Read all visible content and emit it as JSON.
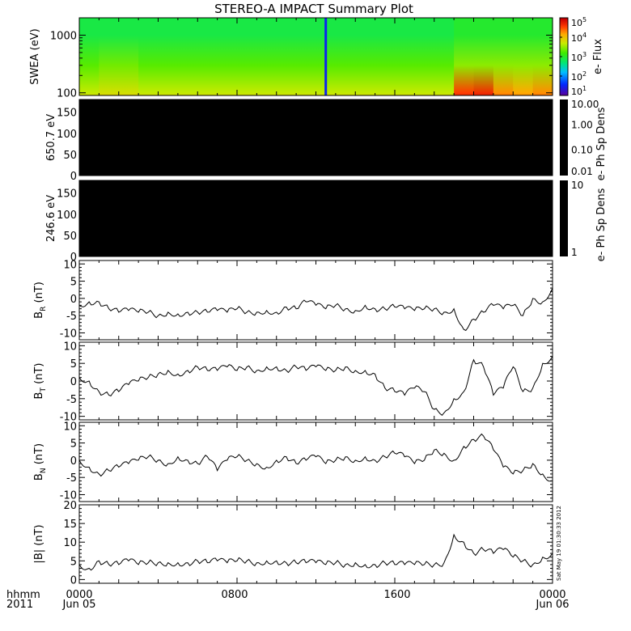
{
  "title": "STEREO-A IMPACT Summary Plot",
  "timestamp": "Sat May 19 01:30:33 2012",
  "colors": {
    "frame": "#000000",
    "background": "#ffffff"
  },
  "chart_data": [
    {
      "type": "heatmap",
      "name": "swea",
      "ylabel": "SWEA (eV)",
      "yscale": "log",
      "ylim": [
        90,
        2000
      ],
      "yticks": [
        "100",
        "1000"
      ],
      "colorbar": {
        "label": "e- Flux",
        "ticks": [
          "10^1",
          "10^2",
          "10^3",
          "10^4",
          "10^5"
        ],
        "range_log10": [
          1,
          5
        ],
        "colormap": "rainbow"
      },
      "bands": [
        {
          "energy": 1000,
          "log_flux_by_hour": [
            2.9,
            2.9,
            2.9,
            2.9,
            2.9,
            2.9,
            2.9,
            2.9,
            2.9,
            2.9,
            2.9,
            2.9,
            2.9,
            2.9,
            2.9,
            2.9,
            2.9,
            2.9,
            2.9,
            3.0,
            3.0,
            3.0,
            3.0,
            3.0,
            3.0
          ]
        },
        {
          "energy": 300,
          "log_flux_by_hour": [
            3.3,
            3.4,
            3.4,
            3.3,
            3.3,
            3.3,
            3.3,
            3.3,
            3.3,
            3.3,
            3.3,
            3.3,
            3.3,
            3.3,
            3.3,
            3.3,
            3.3,
            3.3,
            3.3,
            3.5,
            3.5,
            3.5,
            3.5,
            3.5,
            3.5
          ]
        },
        {
          "energy": 100,
          "log_flux_by_hour": [
            3.7,
            3.8,
            3.8,
            3.7,
            3.7,
            3.7,
            3.7,
            3.7,
            3.7,
            3.7,
            3.7,
            3.7,
            3.7,
            3.7,
            3.7,
            3.7,
            3.7,
            3.7,
            3.7,
            4.6,
            4.7,
            4.3,
            4.2,
            4.3,
            4.3
          ]
        }
      ],
      "data_gap_hour": 12.5
    },
    {
      "type": "heatmap",
      "name": "pad-650",
      "ylabel": "650.7 eV",
      "ylim": [
        0,
        180
      ],
      "yticks": [
        0,
        50,
        100,
        150
      ],
      "colorbar": {
        "label": "e- Ph Sp Dens",
        "ticks": [
          "0.01",
          "0.10",
          "1.00",
          "10.00"
        ]
      },
      "fill": "no data"
    },
    {
      "type": "heatmap",
      "name": "pad-246",
      "ylabel": "246.6 eV",
      "ylim": [
        0,
        180
      ],
      "yticks": [
        0,
        50,
        100,
        150
      ],
      "colorbar": {
        "label": "e- Ph Sp Dens",
        "ticks": [
          "1",
          "10"
        ]
      },
      "fill": "no data"
    },
    {
      "type": "line",
      "name": "br",
      "ylabel": "B",
      "ylabel_sub": "R",
      "ylabel_unit": " (nT)",
      "ylim": [
        -12,
        11
      ],
      "yticks": [
        -10,
        -5,
        0,
        5,
        10
      ],
      "x": [
        0,
        0.5,
        1,
        1.5,
        2,
        2.5,
        3,
        3.5,
        4,
        4.5,
        5,
        5.5,
        6,
        6.5,
        7,
        7.5,
        8,
        8.5,
        9,
        9.5,
        10,
        10.5,
        11,
        11.5,
        12,
        12.5,
        13,
        13.5,
        14,
        14.5,
        15,
        15.5,
        16,
        16.5,
        17,
        17.5,
        18,
        18.5,
        19,
        19.5,
        20,
        20.5,
        21,
        21.5,
        22,
        22.5,
        23,
        23.5,
        24
      ],
      "y": [
        -2,
        -1,
        -1,
        -3,
        -4,
        -3.5,
        -4,
        -4,
        -5,
        -4,
        -4.5,
        -4,
        -4,
        -4,
        -3.5,
        -4,
        -3,
        -4,
        -4,
        -3.5,
        -4,
        -2.5,
        -3,
        -1,
        -2,
        -3,
        -2,
        -3,
        -3.5,
        -2,
        -3,
        -3,
        -2.5,
        -3,
        -3.5,
        -3,
        -3,
        -4,
        -3,
        -9,
        -6,
        -4,
        -2,
        -3,
        -2,
        -5,
        0,
        -1,
        3
      ]
    },
    {
      "type": "line",
      "name": "bt",
      "ylabel": "B",
      "ylabel_sub": "T",
      "ylabel_unit": " (nT)",
      "ylim": [
        -11,
        11
      ],
      "yticks": [
        -10,
        -5,
        0,
        5,
        10
      ],
      "x": [
        0,
        0.5,
        1,
        1.5,
        2,
        2.5,
        3,
        3.5,
        4,
        4.5,
        5,
        5.5,
        6,
        6.5,
        7,
        7.5,
        8,
        8.5,
        9,
        9.5,
        10,
        10.5,
        11,
        11.5,
        12,
        12.5,
        13,
        13.5,
        14,
        14.5,
        15,
        15.5,
        16,
        16.5,
        17,
        17.5,
        18,
        18.5,
        19,
        19.5,
        20,
        20.5,
        21,
        21.5,
        22,
        22.5,
        23,
        23.5,
        24
      ],
      "y": [
        1,
        0,
        -3,
        -4,
        -3,
        -1,
        0,
        1,
        2,
        3,
        2,
        3,
        4,
        3,
        3,
        4,
        3,
        4,
        3,
        4,
        4,
        3,
        4,
        3,
        4,
        3,
        3,
        4,
        3,
        3,
        2,
        -2,
        -3,
        -4,
        -2,
        -3,
        -8,
        -9,
        -5,
        -3,
        6,
        4,
        -4,
        -2,
        4,
        -3,
        -2,
        5,
        7
      ]
    },
    {
      "type": "line",
      "name": "bn",
      "ylabel": "B",
      "ylabel_sub": "N",
      "ylabel_unit": " (nT)",
      "ylim": [
        -12,
        11
      ],
      "yticks": [
        -10,
        -5,
        0,
        5,
        10
      ],
      "x": [
        0,
        0.5,
        1,
        1.5,
        2,
        2.5,
        3,
        3.5,
        4,
        4.5,
        5,
        5.5,
        6,
        6.5,
        7,
        7.5,
        8,
        8.5,
        9,
        9.5,
        10,
        10.5,
        11,
        11.5,
        12,
        12.5,
        13,
        13.5,
        14,
        14.5,
        15,
        15.5,
        16,
        16.5,
        17,
        17.5,
        18,
        18.5,
        19,
        19.5,
        20,
        20.5,
        21,
        21.5,
        22,
        22.5,
        23,
        23.5,
        24
      ],
      "y": [
        0,
        -2,
        -4,
        -3,
        -2,
        -1,
        0,
        1,
        0,
        -1,
        1,
        0,
        -1,
        1,
        -3,
        0,
        1,
        0,
        -1,
        -2,
        0,
        1,
        -1,
        0,
        1,
        -1,
        0,
        1,
        0,
        1,
        0,
        1,
        2,
        1,
        -1,
        0,
        3,
        2,
        0,
        4,
        6,
        7,
        3,
        -2,
        -4,
        -3,
        -1,
        -4,
        -6
      ]
    },
    {
      "type": "line",
      "name": "btot",
      "ylabel": "|B| (nT)",
      "ylim": [
        -1,
        20
      ],
      "yticks": [
        0,
        5,
        10,
        15,
        20
      ],
      "x": [
        0,
        0.5,
        1,
        1.5,
        2,
        2.5,
        3,
        3.5,
        4,
        4.5,
        5,
        5.5,
        6,
        6.5,
        7,
        7.5,
        8,
        8.5,
        9,
        9.5,
        10,
        10.5,
        11,
        11.5,
        12,
        12.5,
        13,
        13.5,
        14,
        14.5,
        15,
        15.5,
        16,
        16.5,
        17,
        17.5,
        18,
        18.5,
        19,
        19.5,
        20,
        20.5,
        21,
        21.5,
        22,
        22.5,
        23,
        23.5,
        24
      ],
      "y": [
        4,
        3,
        5,
        4,
        4,
        5,
        4,
        4.5,
        4.5,
        4.5,
        4.5,
        4.5,
        5,
        4.5,
        5,
        4.5,
        5,
        5,
        4.5,
        5,
        5,
        4.5,
        4.5,
        4.5,
        4.5,
        4,
        4.5,
        4,
        4.5,
        4,
        4,
        4.5,
        4,
        4,
        4,
        4,
        4,
        4.5,
        12,
        10,
        7,
        8,
        7,
        8,
        6,
        5,
        4,
        6,
        7
      ]
    }
  ],
  "xaxis": {
    "ticks": [
      {
        "hour": 0,
        "label": "0000",
        "date": "Jun 05"
      },
      {
        "hour": 8,
        "label": "0800",
        "date": ""
      },
      {
        "hour": 16,
        "label": "1600",
        "date": ""
      },
      {
        "hour": 24,
        "label": "0000",
        "date": "Jun 06"
      }
    ],
    "corner_label_top": "hhmm",
    "corner_label_bottom": "2011"
  }
}
